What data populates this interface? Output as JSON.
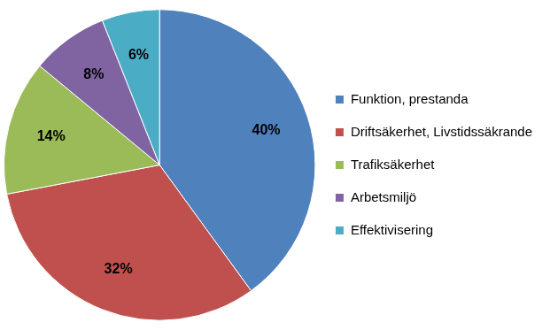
{
  "chart_data": {
    "type": "pie",
    "categories": [
      "Funktion, prestanda",
      "Driftsäkerhet, Livstidssäkrande",
      "Trafiksäkerhet",
      "Arbetsmiljö",
      "Effektivisering"
    ],
    "values": [
      40,
      32,
      14,
      8,
      6
    ],
    "value_labels": [
      "40%",
      "32%",
      "14%",
      "8%",
      "6%"
    ],
    "colors": [
      "#4f81bd",
      "#c0504d",
      "#9bbb59",
      "#8064a2",
      "#4bacc6"
    ],
    "data_labels": true,
    "legend": "right"
  }
}
